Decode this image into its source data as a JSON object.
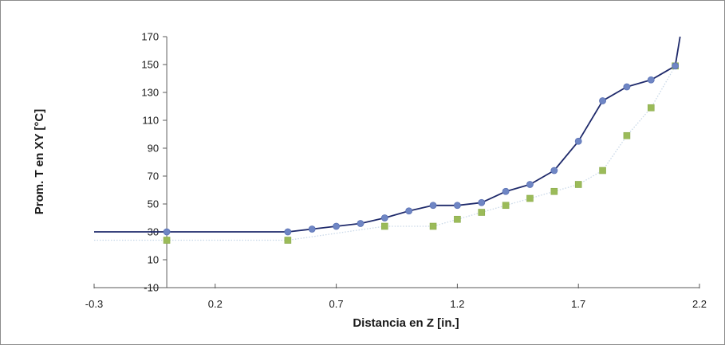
{
  "chart_data": {
    "type": "scatter",
    "title": "",
    "xlabel": "Distancia en Z [in.]",
    "ylabel": "Prom. T en XY [°C]",
    "xlim": [
      -0.3,
      2.2
    ],
    "ylim": [
      -10,
      170
    ],
    "xticks": [
      -0.3,
      0.2,
      0.7,
      1.2,
      1.7,
      2.2
    ],
    "xtick_labels": [
      "-0.3",
      "0.2",
      "0.7",
      "1.2",
      "1.7",
      "2.2"
    ],
    "yticks": [
      -10,
      10,
      30,
      50,
      70,
      90,
      110,
      130,
      150,
      170
    ],
    "ytick_labels": [
      "-10",
      "10",
      "30",
      "50",
      "70",
      "90",
      "110",
      "130",
      "150",
      "170"
    ],
    "grid": false,
    "legend": "none",
    "series": [
      {
        "marker": "circle",
        "line": "solid",
        "color": "#6f86c4",
        "line_color": "#1f2a6b",
        "x": [
          0.0,
          0.5,
          0.6,
          0.7,
          0.8,
          0.9,
          1.0,
          1.1,
          1.2,
          1.3,
          1.4,
          1.5,
          1.6,
          1.7,
          1.8,
          1.9,
          2.0,
          2.1
        ],
        "y": [
          30,
          30,
          32,
          34,
          36,
          40,
          45,
          49,
          49,
          51,
          59,
          64,
          74,
          95,
          124,
          134,
          139,
          149
        ],
        "line_x": [
          -0.3,
          0.0,
          0.5,
          0.6,
          0.7,
          0.8,
          0.9,
          1.0,
          1.1,
          1.2,
          1.3,
          1.4,
          1.5,
          1.6,
          1.7,
          1.8,
          1.9,
          2.0,
          2.1,
          2.12
        ],
        "line_y": [
          30,
          30,
          30,
          32,
          34,
          36,
          40,
          45,
          49,
          49,
          51,
          59,
          64,
          74,
          95,
          124,
          134,
          139,
          149,
          170
        ]
      },
      {
        "marker": "square",
        "line": "dotted",
        "color": "#9bbb59",
        "line_color": "#c9d8e8",
        "x": [
          0.0,
          0.5,
          0.9,
          1.1,
          1.2,
          1.3,
          1.4,
          1.5,
          1.6,
          1.7,
          1.8,
          1.9,
          2.0,
          2.1
        ],
        "y": [
          24,
          24,
          34,
          34,
          39,
          44,
          49,
          54,
          59,
          64,
          74,
          99,
          119,
          149
        ],
        "line_x": [
          -0.3,
          0.0,
          0.5,
          0.9,
          1.1,
          1.2,
          1.3,
          1.4,
          1.5,
          1.6,
          1.7,
          1.8,
          1.9,
          2.0,
          2.1
        ],
        "line_y": [
          24,
          24,
          24,
          34,
          34,
          39,
          44,
          49,
          54,
          59,
          64,
          74,
          99,
          119,
          149
        ]
      }
    ]
  }
}
